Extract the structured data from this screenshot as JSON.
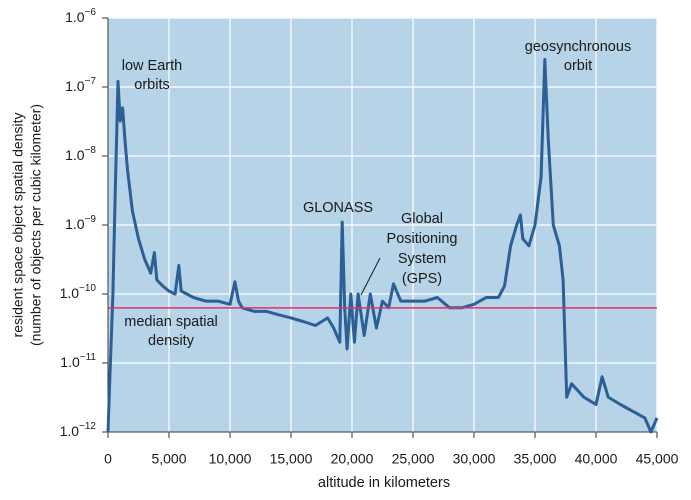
{
  "chart_data": {
    "type": "line",
    "ylabel": [
      "resident space object spatial density",
      "(number of objects per cubic kilometer)"
    ],
    "xlabel": "altitude in kilometers",
    "ylog": true,
    "grid": true,
    "background": "#b6d3e8",
    "xlim": [
      0,
      45000
    ],
    "ylim": [
      1e-12,
      1e-06
    ],
    "xticks": [
      0,
      {
        "value": 5000,
        "label": "5,000"
      },
      {
        "value": 10000,
        "label": "10,000"
      },
      {
        "value": 15000,
        "label": "15,000"
      },
      {
        "value": 20000,
        "label": "20,000"
      },
      {
        "value": 25000,
        "label": "25,000"
      },
      {
        "value": 30000,
        "label": "30,000"
      },
      {
        "value": 35000,
        "label": "35,000"
      },
      {
        "value": 40000,
        "label": "40,000"
      },
      {
        "value": 45000,
        "label": "45,000"
      }
    ],
    "yticks": [
      {
        "value": 1e-12,
        "label": "1.0−12"
      },
      {
        "value": 1e-11,
        "label": "1.0−11"
      },
      {
        "value": 1e-10,
        "label": "1.0−10"
      },
      {
        "value": 1e-09,
        "label": "1.0−9"
      },
      {
        "value": 1e-08,
        "label": "1.0−8"
      },
      {
        "value": 1e-07,
        "label": "1.0−7"
      },
      {
        "value": 1e-06,
        "label": "1.0−6"
      }
    ],
    "x": [
      0,
      200,
      400,
      600,
      820,
      1000,
      1200,
      1400,
      1600,
      2000,
      2500,
      3000,
      3500,
      3800,
      4000,
      4500,
      5000,
      5500,
      5800,
      6000,
      7000,
      8000,
      9000,
      10000,
      10400,
      10700,
      11000,
      12000,
      13000,
      14000,
      15000,
      16000,
      17000,
      18000,
      18500,
      19000,
      19200,
      19400,
      19600,
      19900,
      20200,
      20500,
      21000,
      21500,
      22000,
      22500,
      23000,
      23400,
      24000,
      25000,
      26000,
      27000,
      28000,
      29000,
      30000,
      31000,
      32000,
      32500,
      33000,
      33500,
      33800,
      34000,
      34500,
      35000,
      35500,
      35800,
      36100,
      36500,
      37000,
      37300,
      37600,
      38000,
      39000,
      40000,
      40500,
      41000,
      42000,
      43000,
      44000,
      44500,
      45000
    ],
    "series": [
      {
        "color": "#2b5f96",
        "values": [
          1e-12,
          1e-11,
          1e-10,
          3.2e-09,
          1.2e-07,
          3.2e-08,
          5e-08,
          1.6e-08,
          6.3e-09,
          1.6e-09,
          6.3e-10,
          3.2e-10,
          2e-10,
          4e-10,
          1.6e-10,
          1.3e-10,
          1.1e-10,
          1e-10,
          2.6e-10,
          1.1e-10,
          8.9e-11,
          7.9e-11,
          7.9e-11,
          7.1e-11,
          1.5e-10,
          7.9e-11,
          6.3e-11,
          5.6e-11,
          5.6e-11,
          5e-11,
          4.5e-11,
          4e-11,
          3.5e-11,
          4.5e-11,
          3.2e-11,
          2e-11,
          1.1e-09,
          6.3e-11,
          1.6e-11,
          1e-10,
          2e-11,
          1e-10,
          2.5e-11,
          1e-10,
          3.2e-11,
          7.9e-11,
          6.3e-11,
          1.4e-10,
          7.9e-11,
          7.9e-11,
          7.9e-11,
          8.9e-11,
          6.3e-11,
          6.3e-11,
          7.1e-11,
          8.9e-11,
          8.9e-11,
          1.3e-10,
          5e-10,
          1e-09,
          1.4e-09,
          6.3e-10,
          5e-10,
          1e-09,
          5e-09,
          2.5e-07,
          1.6e-08,
          1e-09,
          5e-10,
          1.6e-10,
          3.2e-12,
          5e-12,
          3.2e-12,
          2.5e-12,
          6.3e-12,
          3.2e-12,
          2.5e-12,
          2e-12,
          1.6e-12,
          1e-12,
          1.6e-12
        ]
      }
    ],
    "reference_line": {
      "value": 6.3e-11,
      "color": "#e0336b",
      "label": [
        "median spatial",
        "density"
      ]
    },
    "annotations": [
      {
        "lines": [
          "low Earth",
          "orbits"
        ]
      },
      {
        "lines": [
          "geosynchronous",
          "orbit"
        ]
      },
      {
        "lines": [
          "GLONASS"
        ]
      },
      {
        "lines": [
          "Global",
          "Positioning",
          "System",
          "(GPS)"
        ]
      }
    ]
  }
}
